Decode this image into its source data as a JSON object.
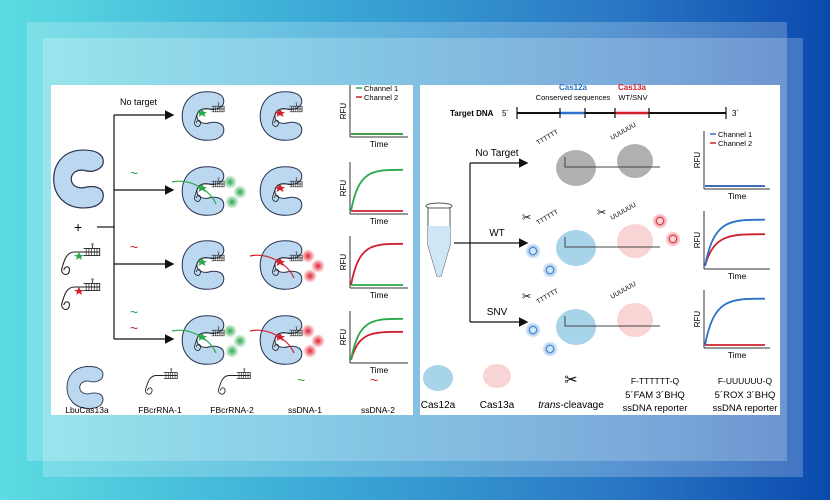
{
  "colors": {
    "channel1_left": "#2aa84a",
    "channel2": "#d0202e",
    "channel1_right": "#2a72c8",
    "protein": "#bcd8f0",
    "cas13a_fill": "#f8d4d4",
    "cas12a_fill": "#a8d4ea",
    "inactive": "#b0b0b0"
  },
  "left_panel": {
    "rows": [
      {
        "condition": "No target",
        "ch1": "flat",
        "ch2": "flat"
      },
      {
        "condition": "ssDNA-1",
        "ch1": "rise",
        "ch2": "flat"
      },
      {
        "condition": "ssDNA-2",
        "ch1": "flat",
        "ch2": "rise"
      },
      {
        "condition": "ssDNA-1 + ssDNA-2",
        "ch1": "rise",
        "ch2": "rise_lower"
      }
    ],
    "no_target_label": "No target",
    "plus": "+",
    "chart": {
      "ylabel": "RFU",
      "xlabel": "Time",
      "legend": [
        "Channel 1",
        "Channel 2"
      ]
    },
    "legend": [
      "LbuCas13a",
      "FBcrRNA-1",
      "FBcrRNA-2",
      "ssDNA-1",
      "ssDNA-2"
    ]
  },
  "right_panel": {
    "target_dna": {
      "label": "Target DNA",
      "five": "5´",
      "three": "3´",
      "cas12a": "Cas12a",
      "cas13a": "Cas13a",
      "conserved": "Conserved sequences",
      "wtsnv": "WT/SNV"
    },
    "branches": [
      "No Target",
      "WT",
      "SNV"
    ],
    "reporter_dna": "TTTTTT",
    "reporter_rna": "UUUUUU",
    "chart": {
      "ylabel": "RFU",
      "xlabel": "Time",
      "legend": [
        "Channel 1",
        "Channel 2"
      ]
    },
    "legend": [
      {
        "label": "Cas12a"
      },
      {
        "label": "Cas13a"
      },
      {
        "label_italic": "trans",
        "label": "-cleavage"
      },
      {
        "reporter": "F-TTTTTT-Q",
        "line1": "5´FAM 3´BHQ",
        "line2": "ssDNA reporter"
      },
      {
        "reporter": "F-UUUUUU-Q",
        "line1": "5´ROX 3´BHQ",
        "line2": "ssDNA reporter"
      }
    ]
  }
}
